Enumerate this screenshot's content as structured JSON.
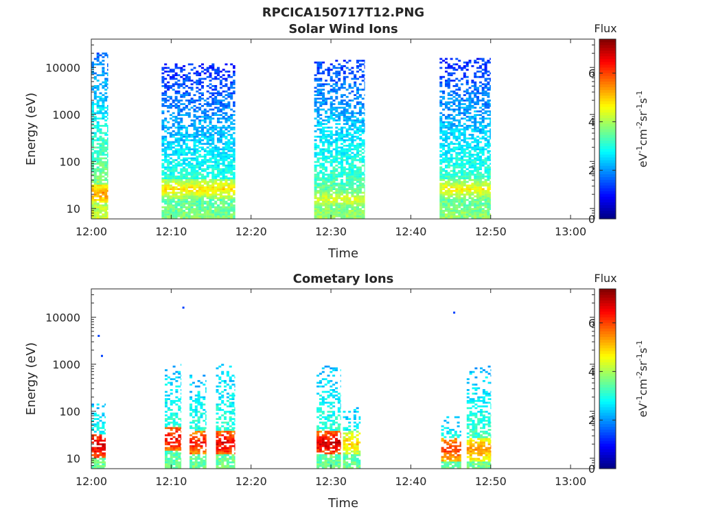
{
  "figure_title": "RPCICA150717T12.PNG",
  "colorbar": {
    "label": "Flux",
    "unit_label": "eV-1cm-2sr-1s-1",
    "ticks": [
      "0",
      "2",
      "4",
      "6"
    ],
    "range": [
      0,
      7.4
    ],
    "colormap": "jet"
  },
  "chart_data": [
    {
      "type": "heatmap",
      "title": "Solar Wind Ions",
      "xlabel": "Time",
      "ylabel": "Energy (eV)",
      "x_ticks": [
        "12:00",
        "12:10",
        "12:20",
        "12:30",
        "12:40",
        "12:50",
        "13:00"
      ],
      "y_ticks": [
        "10",
        "100",
        "1000",
        "10000"
      ],
      "y_scale": "log",
      "xlim_minutes": [
        0,
        63
      ],
      "ylim_eV": [
        6,
        40000
      ],
      "bursts": [
        {
          "start_min": 0.0,
          "end_min": 2.1,
          "top_eV": 20000,
          "lower_flux": 4.3,
          "peak_flux": 5.8,
          "peak_eV": 20
        },
        {
          "start_min": 8.8,
          "end_min": 18.0,
          "top_eV": 12000,
          "lower_flux": 3.7,
          "peak_flux": 5.2,
          "peak_eV": 25
        },
        {
          "start_min": 27.9,
          "end_min": 34.2,
          "top_eV": 14000,
          "lower_flux": 3.9,
          "peak_flux": 4.8,
          "peak_eV": 15
        },
        {
          "start_min": 43.6,
          "end_min": 50.0,
          "top_eV": 15000,
          "lower_flux": 3.8,
          "peak_flux": 5.0,
          "peak_eV": 25
        }
      ]
    },
    {
      "type": "heatmap",
      "title": "Cometary Ions",
      "xlabel": "Time",
      "ylabel": "Energy (eV)",
      "x_ticks": [
        "12:00",
        "12:10",
        "12:20",
        "12:30",
        "12:40",
        "12:50",
        "13:00"
      ],
      "y_ticks": [
        "10",
        "100",
        "1000",
        "10000"
      ],
      "y_scale": "log",
      "xlim_minutes": [
        0,
        63
      ],
      "ylim_eV": [
        6,
        40000
      ],
      "bursts": [
        {
          "start_min": 0.0,
          "end_min": 1.8,
          "top_eV": 150,
          "peak_flux": 7.2,
          "peak_eV": 18
        },
        {
          "start_min": 9.2,
          "end_min": 11.2,
          "top_eV": 1000,
          "peak_flux": 7.0,
          "peak_eV": 25
        },
        {
          "start_min": 12.3,
          "end_min": 14.4,
          "top_eV": 600,
          "peak_flux": 6.8,
          "peak_eV": 20
        },
        {
          "start_min": 15.6,
          "end_min": 18.0,
          "top_eV": 1000,
          "peak_flux": 7.1,
          "peak_eV": 20
        },
        {
          "start_min": 28.2,
          "end_min": 31.2,
          "top_eV": 900,
          "peak_flux": 7.2,
          "peak_eV": 20
        },
        {
          "start_min": 31.5,
          "end_min": 33.7,
          "top_eV": 120,
          "peak_flux": 5.4,
          "peak_eV": 20
        },
        {
          "start_min": 43.8,
          "end_min": 46.3,
          "top_eV": 90,
          "peak_flux": 6.5,
          "peak_eV": 15
        },
        {
          "start_min": 47.0,
          "end_min": 50.0,
          "top_eV": 900,
          "peak_flux": 5.8,
          "peak_eV": 15
        }
      ],
      "outliers": [
        {
          "time_min": 0.8,
          "energy_eV": 4000
        },
        {
          "time_min": 1.2,
          "energy_eV": 1500
        },
        {
          "time_min": 11.4,
          "energy_eV": 16000
        },
        {
          "time_min": 45.3,
          "energy_eV": 12500
        }
      ]
    }
  ]
}
